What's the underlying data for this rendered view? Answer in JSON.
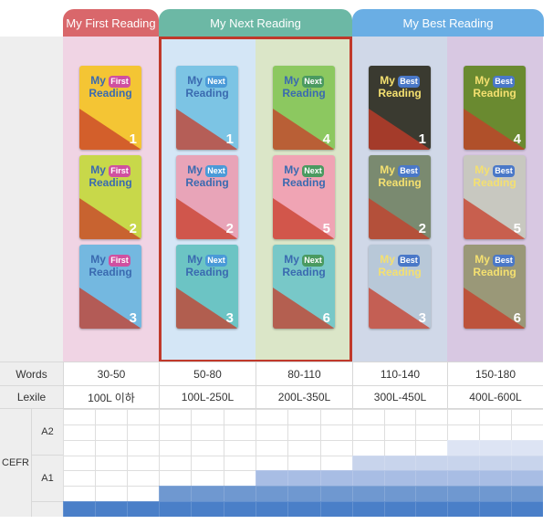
{
  "series": [
    {
      "name": "My First Reading",
      "color": "#d9676b"
    },
    {
      "name": "My Next Reading",
      "color": "#6cb8a5"
    },
    {
      "name": "My Best Reading",
      "color": "#6aaee4"
    }
  ],
  "books": [
    {
      "series": "My First Reading",
      "levels": [
        "1",
        "2",
        "3"
      ]
    },
    {
      "series": "My Next Reading",
      "levels": [
        "1",
        "2",
        "3"
      ]
    },
    {
      "series": "My Next Reading",
      "levels": [
        "4",
        "5",
        "6"
      ]
    },
    {
      "series": "My Best Reading",
      "levels": [
        "1",
        "2",
        "3"
      ]
    },
    {
      "series": "My Best Reading",
      "levels": [
        "4",
        "5",
        "6"
      ]
    }
  ],
  "cover_titles": {
    "my": "My",
    "first": "First",
    "next": "Next",
    "best": "Best",
    "reading": "Reading"
  },
  "table": {
    "words_label": "Words",
    "lexile_label": "Lexile",
    "cefr_label": "CEFR",
    "cefr_levels": [
      "A2",
      "A1"
    ],
    "words": [
      "30-50",
      "50-80",
      "80-110",
      "110-140",
      "150-180"
    ],
    "lexile": [
      "100L 이하",
      "100L-250L",
      "200L-350L",
      "300L-450L",
      "400L-600L"
    ]
  },
  "cefr_fill_rows_from_bottom": [
    1,
    2,
    3,
    4,
    5
  ],
  "colors": {
    "highlight": "#c0392b",
    "cefr": [
      "#4a7fc8",
      "#6f98d0",
      "#a8bde4",
      "#c8d4ec",
      "#dde4f4"
    ]
  }
}
